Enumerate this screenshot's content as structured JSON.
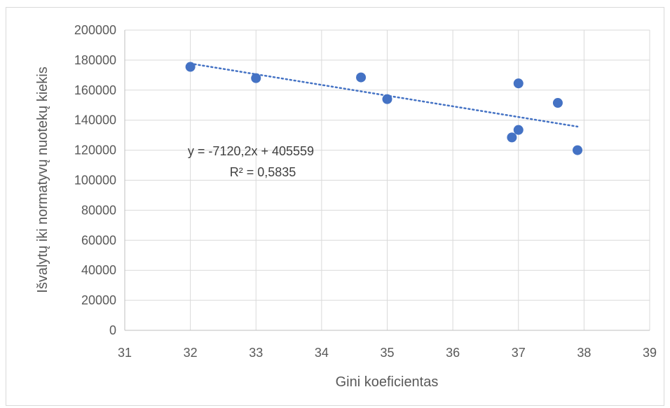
{
  "chart_data": {
    "type": "scatter",
    "title": "",
    "xlabel": "Gini koeficientas",
    "ylabel": "Išvalytų iki normatyvų nuotekų kiekis",
    "xlim": [
      31,
      39
    ],
    "ylim": [
      0,
      200000
    ],
    "x_ticks": [
      "31",
      "32",
      "33",
      "34",
      "35",
      "36",
      "37",
      "38",
      "39"
    ],
    "y_ticks": [
      "0",
      "20000",
      "40000",
      "60000",
      "80000",
      "100000",
      "120000",
      "140000",
      "160000",
      "180000",
      "200000"
    ],
    "grid": true,
    "legend": "none",
    "marker_color": "#4472c4",
    "trendline_color": "#4472c4",
    "points": [
      {
        "x": 32.0,
        "y": 175500
      },
      {
        "x": 33.0,
        "y": 168000
      },
      {
        "x": 34.6,
        "y": 168500
      },
      {
        "x": 35.0,
        "y": 154000
      },
      {
        "x": 36.9,
        "y": 128500
      },
      {
        "x": 37.0,
        "y": 133500
      },
      {
        "x": 37.0,
        "y": 164500
      },
      {
        "x": 37.6,
        "y": 151500
      },
      {
        "x": 37.9,
        "y": 120000
      }
    ],
    "trendline": {
      "type": "linear",
      "slope": -7120.2,
      "intercept": 405559,
      "x_start": 32.0,
      "x_end": 37.9,
      "equation_text": "y = -7120,2x + 405559",
      "r2_text": "R² = 0,5835"
    }
  }
}
